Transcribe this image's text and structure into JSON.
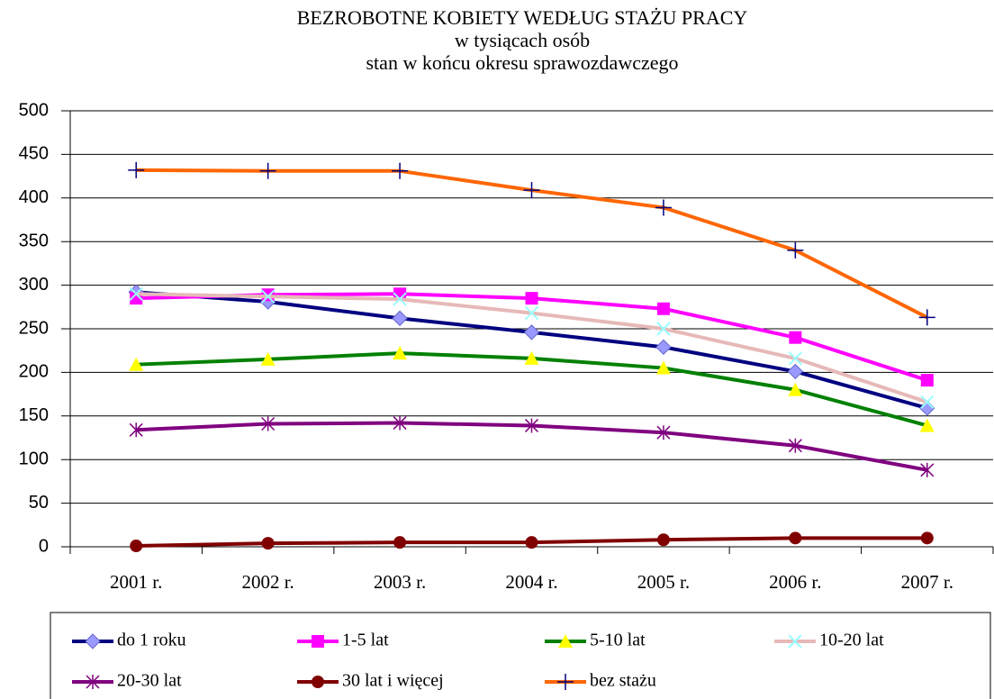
{
  "chart_data": {
    "type": "line",
    "title": "BEZROBOTNE KOBIETY WEDŁUG STAŻU PRACY",
    "subtitle": [
      "w tysiącach osób",
      "stan w końcu okresu sprawozdawczego"
    ],
    "categories": [
      "2001 r.",
      "2002 r.",
      "2003 r.",
      "2004 r.",
      "2005 r.",
      "2006 r.",
      "2007 r."
    ],
    "ylim": [
      0,
      500
    ],
    "yticks": [
      0,
      50,
      100,
      150,
      200,
      250,
      300,
      350,
      400,
      450,
      500
    ],
    "grid": true,
    "legend": "bottom",
    "series": [
      {
        "name": "do 1 roku",
        "color": "#000080",
        "marker": "diamond",
        "marker_color": "#9999ff",
        "values": [
          292,
          281,
          262,
          246,
          229,
          201,
          159
        ]
      },
      {
        "name": "1-5 lat",
        "color": "#ff00ff",
        "marker": "square",
        "marker_color": "#ff00ff",
        "values": [
          285,
          289,
          290,
          285,
          273,
          240,
          191
        ]
      },
      {
        "name": "5-10 lat",
        "color": "#008000",
        "marker": "triangle",
        "marker_color": "#ffff00",
        "values": [
          209,
          215,
          222,
          216,
          205,
          180,
          139
        ]
      },
      {
        "name": "10-20 lat",
        "color": "#e6b9b8",
        "marker": "x",
        "marker_color": "#99ffff",
        "values": [
          290,
          287,
          284,
          268,
          250,
          216,
          166
        ]
      },
      {
        "name": "20-30 lat",
        "color": "#800080",
        "marker": "star",
        "marker_color": "#800080",
        "values": [
          134,
          141,
          142,
          139,
          131,
          116,
          88
        ]
      },
      {
        "name": "30 lat i więcej",
        "color": "#800000",
        "marker": "circle",
        "marker_color": "#800000",
        "values": [
          1,
          4,
          5,
          5,
          8,
          10,
          10
        ]
      },
      {
        "name": "bez stażu",
        "color": "#ff6600",
        "marker": "plus",
        "marker_color": "#000080",
        "values": [
          432,
          431,
          431,
          409,
          389,
          340,
          263
        ]
      }
    ]
  }
}
